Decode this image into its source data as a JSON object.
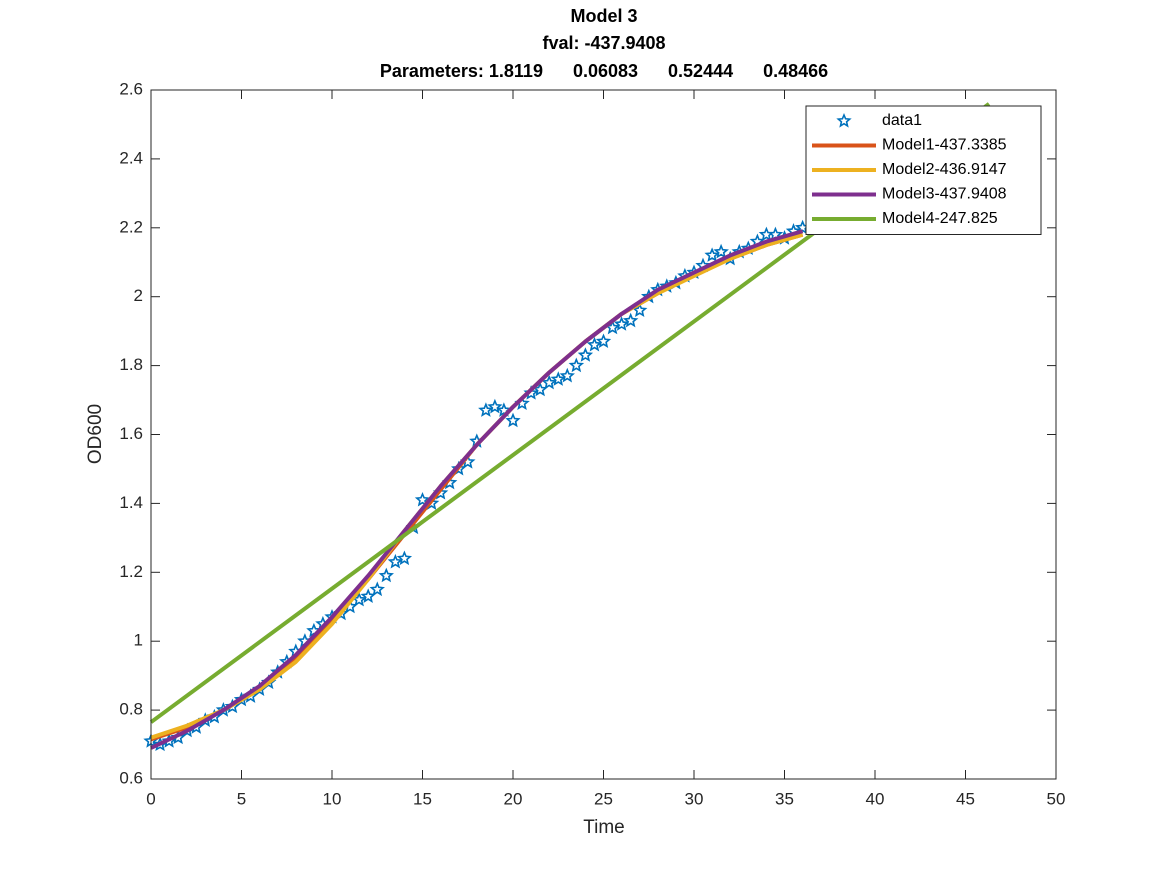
{
  "chart_data": {
    "type": "line",
    "title": [
      "Model 3",
      "fval: -437.9408",
      "Parameters: 1.8119      0.06083      0.52444      0.48466"
    ],
    "x_label": "Time",
    "y_label": "OD600",
    "xlim": [
      0,
      50
    ],
    "ylim": [
      0.6,
      2.6
    ],
    "xticks": [
      0,
      5,
      10,
      15,
      20,
      25,
      30,
      35,
      40,
      45,
      50
    ],
    "yticks": [
      0.6,
      0.8,
      1,
      1.2,
      1.4,
      1.6,
      1.8,
      2,
      2.2,
      2.4,
      2.6
    ],
    "grid": false,
    "legend": "northeast",
    "series": [
      {
        "name": "data1",
        "kind": "scatter",
        "marker": "star",
        "color": "#0072bd",
        "x": [
          0,
          0.5,
          1,
          1.5,
          2,
          2.5,
          3,
          3.5,
          4,
          4.5,
          5,
          5.5,
          6,
          6.5,
          7,
          7.5,
          8,
          8.5,
          9,
          9.5,
          10,
          10.5,
          11,
          11.5,
          12,
          12.5,
          13,
          13.5,
          14,
          14.5,
          15,
          15.5,
          16,
          16.5,
          17,
          17.5,
          18,
          18.5,
          19,
          19.5,
          20,
          20.5,
          21,
          21.5,
          22,
          22.5,
          23,
          23.5,
          24,
          24.5,
          25,
          25.5,
          26,
          26.5,
          27,
          27.5,
          28,
          28.5,
          29,
          29.5,
          30,
          30.5,
          31,
          31.5,
          32,
          32.5,
          33,
          33.5,
          34,
          34.5,
          35,
          35.5,
          36
        ],
        "values": [
          0.71,
          0.7,
          0.71,
          0.72,
          0.74,
          0.75,
          0.77,
          0.78,
          0.8,
          0.81,
          0.83,
          0.84,
          0.86,
          0.88,
          0.91,
          0.94,
          0.97,
          1.0,
          1.03,
          1.05,
          1.07,
          1.08,
          1.1,
          1.12,
          1.13,
          1.15,
          1.19,
          1.23,
          1.24,
          1.33,
          1.41,
          1.4,
          1.43,
          1.46,
          1.5,
          1.52,
          1.58,
          1.67,
          1.68,
          1.67,
          1.64,
          1.69,
          1.72,
          1.73,
          1.75,
          1.76,
          1.77,
          1.8,
          1.83,
          1.86,
          1.87,
          1.91,
          1.92,
          1.93,
          1.96,
          2.0,
          2.02,
          2.03,
          2.04,
          2.06,
          2.07,
          2.09,
          2.12,
          2.13,
          2.11,
          2.13,
          2.14,
          2.16,
          2.18,
          2.18,
          2.17,
          2.19,
          2.2
        ]
      },
      {
        "name": "Model1-437.3385",
        "kind": "line",
        "color": "#d95319",
        "x": [
          0,
          2,
          4,
          6,
          8,
          10,
          12,
          14,
          16,
          18,
          20,
          22,
          24,
          26,
          28,
          30,
          32,
          34,
          36
        ],
        "values": [
          0.715,
          0.75,
          0.8,
          0.86,
          0.95,
          1.06,
          1.18,
          1.31,
          1.44,
          1.57,
          1.68,
          1.78,
          1.87,
          1.95,
          2.01,
          2.07,
          2.11,
          2.15,
          2.18
        ]
      },
      {
        "name": "Model2-436.9147",
        "kind": "line",
        "color": "#edb120",
        "x": [
          0,
          2,
          4,
          6,
          8,
          10,
          12,
          14,
          16,
          18,
          20,
          22,
          24,
          26,
          28,
          30,
          32,
          34,
          36
        ],
        "values": [
          0.72,
          0.755,
          0.8,
          0.86,
          0.94,
          1.05,
          1.18,
          1.32,
          1.45,
          1.57,
          1.68,
          1.78,
          1.87,
          1.95,
          2.01,
          2.06,
          2.11,
          2.15,
          2.18
        ]
      },
      {
        "name": "Model3-437.9408",
        "kind": "line",
        "color": "#7e2f8e",
        "x": [
          0,
          2,
          4,
          6,
          8,
          10,
          12,
          14,
          16,
          18,
          20,
          22,
          24,
          26,
          28,
          30,
          32,
          34,
          36
        ],
        "values": [
          0.69,
          0.74,
          0.8,
          0.87,
          0.96,
          1.07,
          1.19,
          1.32,
          1.45,
          1.57,
          1.68,
          1.78,
          1.87,
          1.95,
          2.02,
          2.07,
          2.12,
          2.16,
          2.19
        ]
      },
      {
        "name": "Model4-247.825",
        "kind": "line",
        "color": "#77ac30",
        "x": [
          0,
          46.3
        ],
        "values": [
          0.765,
          2.56
        ]
      }
    ]
  }
}
